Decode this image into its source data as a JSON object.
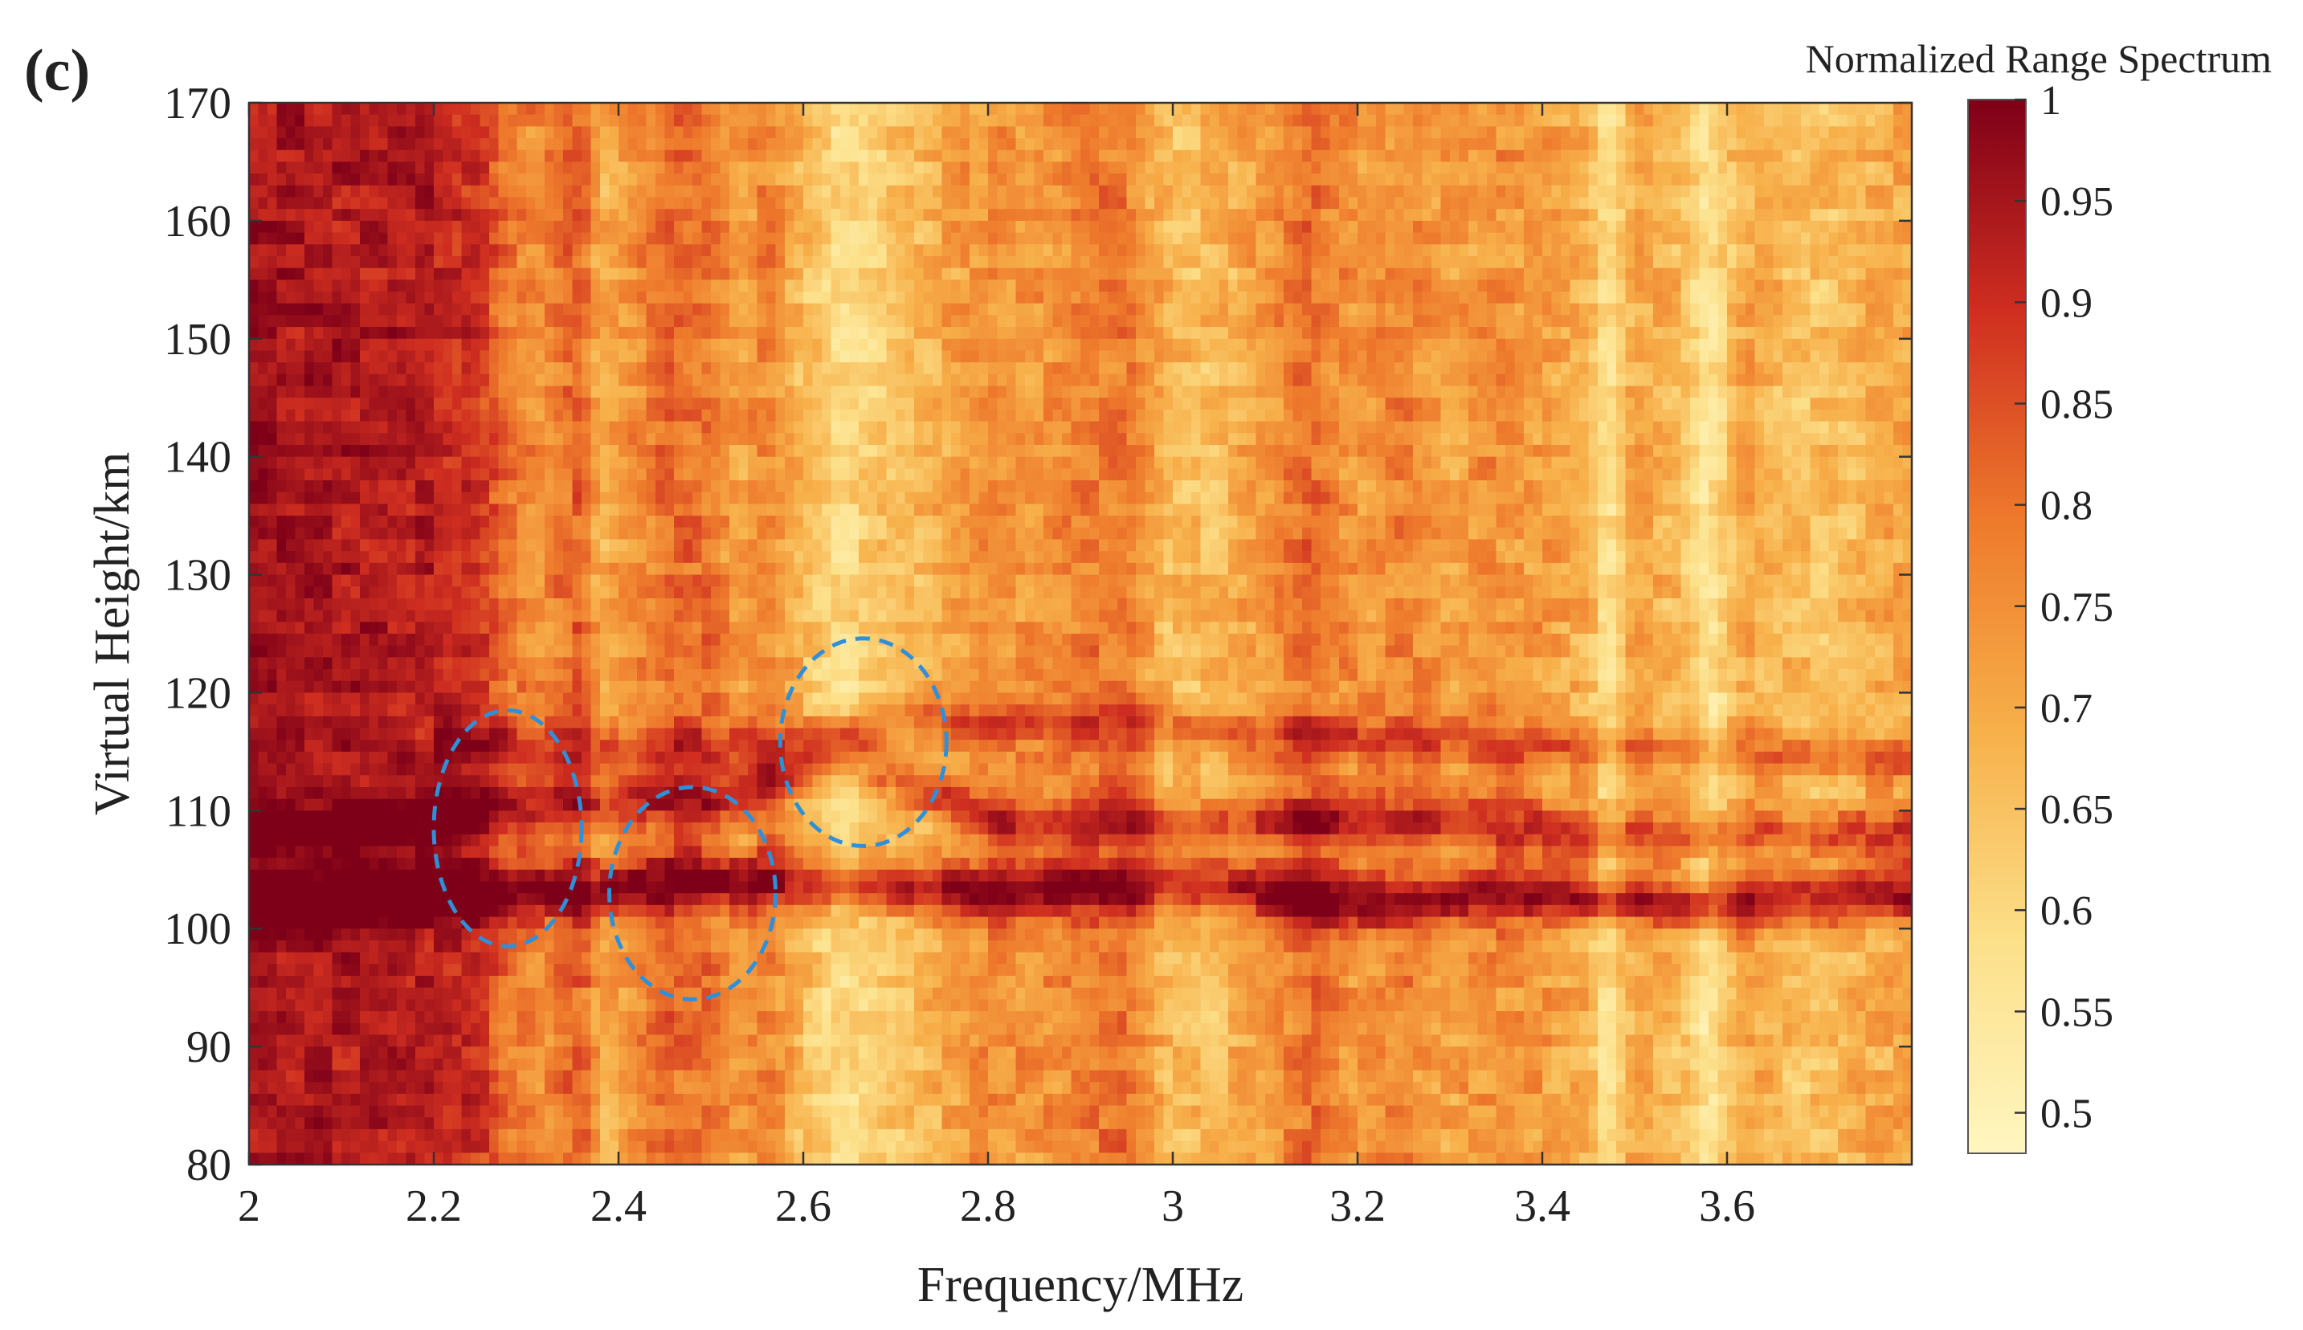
{
  "panel_label": "(c)",
  "colorbar_title": "Normalized Range Spectrum",
  "colors": {
    "low": "#fff3b0",
    "mid": "#f6a03c",
    "high": "#9b0022",
    "annotation": "#2f8fd8"
  },
  "chart_data": {
    "type": "heatmap",
    "title": "",
    "xlabel": "Frequency/MHz",
    "ylabel": "Virtual Height/km",
    "xlim": [
      2,
      3.8
    ],
    "ylim": [
      80,
      170
    ],
    "x_ticks": [
      2,
      2.2,
      2.4,
      2.6,
      2.8,
      3,
      3.2,
      3.4,
      3.6
    ],
    "y_ticks": [
      80,
      90,
      100,
      110,
      120,
      130,
      140,
      150,
      160,
      170
    ],
    "colorbar": {
      "label": "Normalized Range Spectrum",
      "range": [
        0.48,
        1
      ],
      "ticks": [
        0.5,
        0.55,
        0.6,
        0.65,
        0.7,
        0.75,
        0.8,
        0.85,
        0.9,
        0.95,
        1
      ]
    },
    "features": [
      {
        "name": "lower layer trace",
        "points": [
          [
            2.0,
            102
          ],
          [
            2.2,
            103
          ],
          [
            2.3,
            103
          ],
          [
            2.5,
            104
          ],
          [
            2.6,
            104
          ],
          [
            2.8,
            103
          ],
          [
            3.0,
            104
          ],
          [
            3.2,
            102
          ],
          [
            3.4,
            103
          ],
          [
            3.6,
            102
          ],
          [
            3.8,
            103
          ]
        ]
      },
      {
        "name": "upper layer trace",
        "points": [
          [
            2.0,
            108
          ],
          [
            2.2,
            109
          ],
          [
            2.35,
            111
          ],
          [
            2.5,
            111
          ],
          [
            2.65,
            115
          ],
          [
            2.8,
            109
          ],
          [
            3.0,
            109
          ],
          [
            3.3,
            109
          ],
          [
            3.5,
            108
          ],
          [
            3.8,
            108
          ]
        ]
      },
      {
        "name": "third trace",
        "points": [
          [
            2.2,
            116
          ],
          [
            2.4,
            115
          ],
          [
            2.6,
            116
          ],
          [
            2.75,
            118
          ],
          [
            3.0,
            117
          ],
          [
            3.2,
            116
          ],
          [
            3.6,
            115
          ],
          [
            3.8,
            114
          ]
        ]
      }
    ],
    "column_intensity": [
      [
        2.0,
        0.95
      ],
      [
        2.05,
        0.94
      ],
      [
        2.1,
        0.93
      ],
      [
        2.15,
        0.93
      ],
      [
        2.2,
        0.92
      ],
      [
        2.25,
        0.88
      ],
      [
        2.28,
        0.78
      ],
      [
        2.32,
        0.74
      ],
      [
        2.36,
        0.82
      ],
      [
        2.38,
        0.68
      ],
      [
        2.42,
        0.74
      ],
      [
        2.46,
        0.8
      ],
      [
        2.5,
        0.78
      ],
      [
        2.53,
        0.7
      ],
      [
        2.56,
        0.76
      ],
      [
        2.6,
        0.66
      ],
      [
        2.64,
        0.58
      ],
      [
        2.68,
        0.62
      ],
      [
        2.72,
        0.66
      ],
      [
        2.76,
        0.7
      ],
      [
        2.8,
        0.74
      ],
      [
        2.85,
        0.72
      ],
      [
        2.9,
        0.76
      ],
      [
        2.95,
        0.78
      ],
      [
        3.0,
        0.65
      ],
      [
        3.05,
        0.66
      ],
      [
        3.1,
        0.72
      ],
      [
        3.15,
        0.8
      ],
      [
        3.2,
        0.72
      ],
      [
        3.25,
        0.76
      ],
      [
        3.3,
        0.7
      ],
      [
        3.35,
        0.74
      ],
      [
        3.4,
        0.72
      ],
      [
        3.45,
        0.68
      ],
      [
        3.47,
        0.55
      ],
      [
        3.5,
        0.7
      ],
      [
        3.55,
        0.66
      ],
      [
        3.58,
        0.55
      ],
      [
        3.62,
        0.7
      ],
      [
        3.66,
        0.66
      ],
      [
        3.7,
        0.64
      ],
      [
        3.75,
        0.68
      ],
      [
        3.8,
        0.7
      ]
    ],
    "annotations": [
      {
        "type": "dashed-ellipse",
        "cx": 2.28,
        "cy": 108.5,
        "rx": 0.08,
        "ry": 10
      },
      {
        "type": "dashed-ellipse",
        "cx": 2.48,
        "cy": 103,
        "rx": 0.09,
        "ry": 9
      },
      {
        "type": "dashed-ellipse",
        "cx": 2.665,
        "cy": 115.8,
        "rx": 0.09,
        "ry": 8.8
      }
    ]
  }
}
